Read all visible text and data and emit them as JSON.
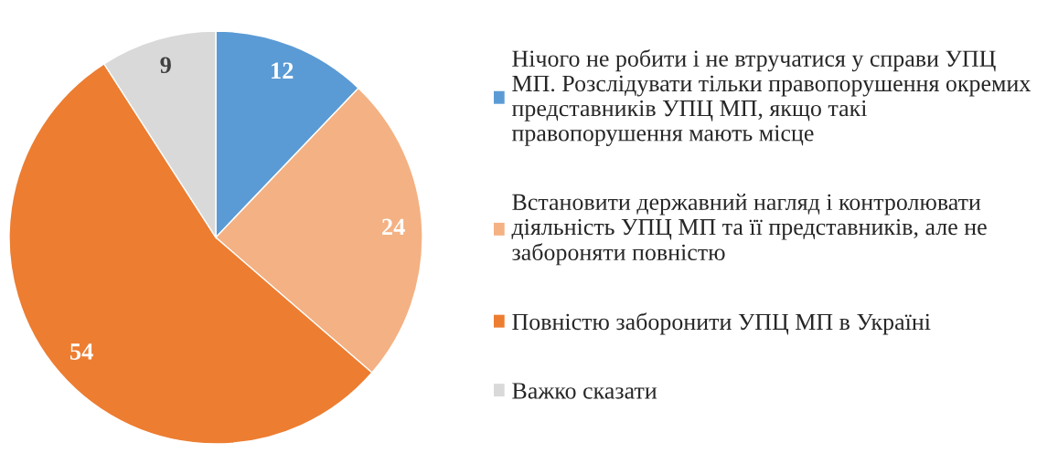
{
  "chart_data": {
    "type": "pie",
    "categories": [
      "Нічого не робити і не втручатися у справи УПЦ МП. Розслідувати тільки правопорушення окремих представників УПЦ МП, якщо такі правопорушення мають місце",
      "Встановити державний нагляд і контролювати діяльність УПЦ МП та її представників, але не забороняти повністю",
      "Повністю заборонити УПЦ МП в Україні",
      "Важко сказати"
    ],
    "values": [
      12,
      24,
      54,
      9
    ],
    "colors": [
      "#5b9bd5",
      "#f4b183",
      "#ed7d31",
      "#d9d9d9"
    ],
    "data_labels": true,
    "legend": "right"
  }
}
